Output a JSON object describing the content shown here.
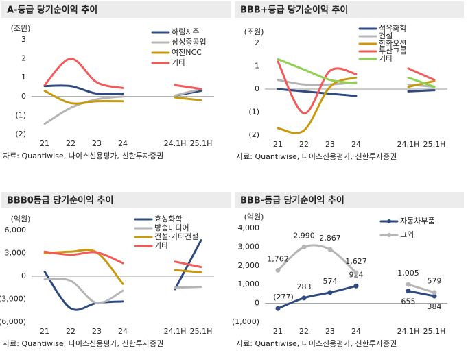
{
  "chart_data": [
    {
      "type": "line",
      "title": "A-등급 당기순이익 추이",
      "unit": "(조원)",
      "source": "자료: Quantiwise, 나이스신용평가, 신한투자증권",
      "categories": [
        "21",
        "22",
        "23",
        "24",
        null,
        "24.1H",
        "25.1H"
      ],
      "ylim": [
        -2,
        3
      ],
      "yticks": [
        {
          "value": -2,
          "label": "(2)"
        },
        {
          "value": -1,
          "label": "(1)"
        },
        0,
        1,
        2,
        3
      ],
      "series": [
        {
          "name": "하림지주",
          "color": "#2e4a7e",
          "values": [
            0.55,
            0.55,
            0.15,
            0.15,
            null,
            0.05,
            0.3
          ]
        },
        {
          "name": "삼성중공업",
          "color": "#b5b5b5",
          "values": [
            -1.45,
            -0.6,
            -0.15,
            0.0,
            null,
            0.05,
            0.4
          ]
        },
        {
          "name": "여천NCC",
          "color": "#c9990c",
          "values": [
            0.3,
            -0.35,
            -0.25,
            -0.25,
            null,
            -0.05,
            -0.2
          ]
        },
        {
          "name": "기타",
          "color": "#f25a5a",
          "values": [
            0.6,
            2.0,
            0.75,
            0.45,
            null,
            0.6,
            0.4
          ]
        }
      ]
    },
    {
      "type": "line",
      "title": "BBB+등급 당기순이익 추이",
      "unit": "(조원)",
      "source": "자료: Quantiwise, 나이스신용평가, 신한투자증권",
      "categories": [
        "21",
        "22",
        "23",
        "24",
        null,
        "24.1H",
        "25.1H"
      ],
      "ylim": [
        -2,
        2
      ],
      "yticks": [
        {
          "value": -2,
          "label": "(2)"
        },
        {
          "value": -1,
          "label": "(1)"
        },
        0,
        1,
        2
      ],
      "series": [
        {
          "name": "석유화학",
          "color": "#2e4a7e",
          "values": [
            0.0,
            -0.1,
            -0.2,
            -0.3,
            null,
            -0.1,
            -0.05
          ]
        },
        {
          "name": "건설",
          "color": "#b5b5b5",
          "values": [
            0.4,
            0.2,
            0.2,
            0.3,
            null,
            0.2,
            0.1
          ]
        },
        {
          "name": "한화오션",
          "color": "#c9990c",
          "values": [
            -1.7,
            -1.8,
            0.1,
            0.5,
            null,
            0.1,
            0.35
          ]
        },
        {
          "name": "두산그룹",
          "color": "#f25a5a",
          "values": [
            1.2,
            -1.05,
            0.8,
            0.65,
            null,
            0.9,
            0.4
          ]
        },
        {
          "name": "기타",
          "color": "#8fd14f",
          "values": [
            1.3,
            0.85,
            0.4,
            0.25,
            null,
            0.5,
            0.1
          ]
        }
      ]
    },
    {
      "type": "line",
      "title": "BBB0등급 당기순이익 추이",
      "unit": "(억원)",
      "source": "자료: Quantiwise, 나이스신용평가, 신한투자증권",
      "categories": [
        "21",
        "22",
        "23",
        "24",
        null,
        "24.1H",
        "25.1H"
      ],
      "ylim": [
        -6000,
        6000
      ],
      "yticks": [
        {
          "value": -6000,
          "label": "(6,000)"
        },
        {
          "value": -3000,
          "label": "(3,000)"
        },
        0,
        {
          "value": 3000,
          "label": "3,000"
        },
        {
          "value": 6000,
          "label": "6,000"
        }
      ],
      "series": [
        {
          "name": "효성화학",
          "color": "#2e4a7e",
          "values": [
            600,
            -4200,
            -3500,
            -3300,
            null,
            -1700,
            4700
          ]
        },
        {
          "name": "방송미디어",
          "color": "#b5b5b5",
          "values": [
            -400,
            -600,
            -3500,
            -1900,
            null,
            -1500,
            -1400
          ]
        },
        {
          "name": "건설·기타건설",
          "color": "#c9990c",
          "values": [
            3000,
            3200,
            3100,
            -1000,
            null,
            800,
            500
          ]
        },
        {
          "name": "기타",
          "color": "#f25a5a",
          "values": [
            3200,
            2800,
            3100,
            1700,
            null,
            1900,
            1200
          ]
        }
      ]
    },
    {
      "type": "line",
      "title": "BBB-등급 당기순이익 추이",
      "unit": "(억원)",
      "source": "자료: Quantiwise, 나이스신용평가, 신한투자증권",
      "categories": [
        "21",
        "22",
        "23",
        "24",
        null,
        "24.1H",
        "25.1H"
      ],
      "ylim": [
        -1000,
        4000
      ],
      "yticks": [
        {
          "value": -1000,
          "label": "(1,000)"
        },
        0,
        {
          "value": 1000,
          "label": "1,000"
        },
        {
          "value": 2000,
          "label": "2,000"
        },
        {
          "value": 3000,
          "label": "3,000"
        },
        {
          "value": 4000,
          "label": "4,000"
        }
      ],
      "markers": true,
      "series": [
        {
          "name": "자동차부품",
          "color": "#2e4a7e",
          "values": [
            -277,
            283,
            574,
            924,
            null,
            655,
            384
          ],
          "value_labels": [
            "(277)",
            "283",
            "574",
            "924",
            null,
            "655",
            "384"
          ]
        },
        {
          "name": "그외",
          "color": "#b5b5b5",
          "values": [
            1762,
            2990,
            2867,
            1627,
            null,
            1005,
            579
          ],
          "value_labels": [
            "1,762",
            "2,990",
            "2,867",
            "1,627",
            null,
            "1,005",
            "579"
          ]
        }
      ]
    }
  ]
}
